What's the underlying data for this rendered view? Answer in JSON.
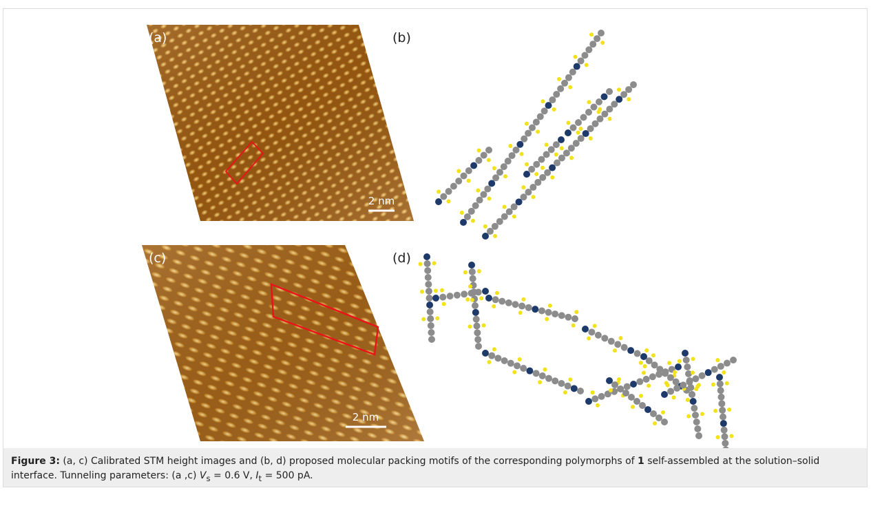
{
  "figure": {
    "panels": [
      {
        "label": "(a)",
        "scale_bar": "2 nm"
      },
      {
        "label": "(b)"
      },
      {
        "label": "(c)",
        "scale_bar": "2 nm"
      },
      {
        "label": "(d)"
      }
    ],
    "caption": {
      "label": "Figure 3:",
      "text_1": "(a, c) Calibrated STM height images and (b, d) proposed molecular packing motifs of the corresponding polymorphs of ",
      "compound": "1",
      "text_2": " self-assembled at the solution–solid interface. Tunneling parameters: (a ,c) ",
      "v_symbol": "V",
      "v_sub": "s",
      "text_3": " = 0.6 V, ",
      "i_symbol": "I",
      "i_sub": "t",
      "text_4": " = 500 pA."
    }
  }
}
